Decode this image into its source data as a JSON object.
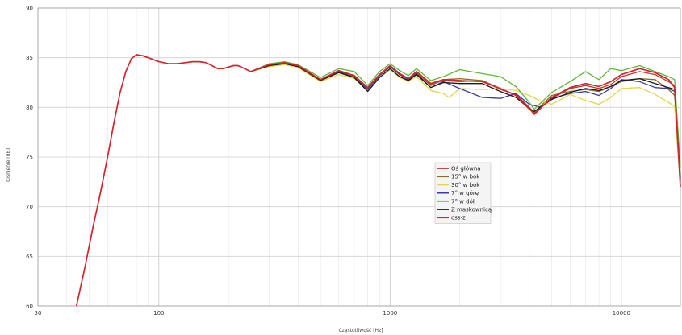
{
  "chart_data": {
    "type": "line",
    "xlabel": "Częstotliwość [Hz]",
    "ylabel": "Ciśnienie [dB]",
    "x_scale": "log",
    "xlim": [
      30,
      18000
    ],
    "ylim": [
      60,
      90
    ],
    "x_ticks": [
      {
        "value": 30,
        "label": "30"
      },
      {
        "value": 100,
        "label": "100"
      },
      {
        "value": 1000,
        "label": "1000"
      },
      {
        "value": 10000,
        "label": "10000"
      }
    ],
    "y_ticks": [
      {
        "value": 60,
        "label": "60"
      },
      {
        "value": 65,
        "label": "65"
      },
      {
        "value": 70,
        "label": "70"
      },
      {
        "value": 75,
        "label": "75"
      },
      {
        "value": 80,
        "label": "80"
      },
      {
        "value": 85,
        "label": "85"
      },
      {
        "value": 90,
        "label": "90"
      }
    ],
    "grid": true,
    "legend_position": "center-right",
    "series": [
      {
        "name": "Oś główna",
        "color": "#c0392b",
        "points": [
          [
            250,
            83.6
          ],
          [
            300,
            84.3
          ],
          [
            350,
            84.5
          ],
          [
            400,
            84.2
          ],
          [
            500,
            82.8
          ],
          [
            600,
            83.7
          ],
          [
            700,
            83.2
          ],
          [
            800,
            82.0
          ],
          [
            900,
            83.3
          ],
          [
            1000,
            84.2
          ],
          [
            1100,
            83.4
          ],
          [
            1200,
            82.9
          ],
          [
            1300,
            83.6
          ],
          [
            1500,
            82.3
          ],
          [
            1700,
            82.7
          ],
          [
            2000,
            82.6
          ],
          [
            2500,
            82.7
          ],
          [
            3000,
            81.8
          ],
          [
            3500,
            81.3
          ],
          [
            4000,
            80.0
          ],
          [
            4200,
            79.4
          ],
          [
            5000,
            80.9
          ],
          [
            6000,
            81.9
          ],
          [
            7000,
            82.2
          ],
          [
            8000,
            81.9
          ],
          [
            9000,
            82.3
          ],
          [
            10000,
            83.1
          ],
          [
            12000,
            83.6
          ],
          [
            14000,
            83.3
          ],
          [
            16000,
            82.6
          ],
          [
            17000,
            82.2
          ],
          [
            18000,
            73.0
          ]
        ]
      },
      {
        "name": "15° w bok",
        "color": "#8e6b1f",
        "points": [
          [
            250,
            83.6
          ],
          [
            300,
            84.3
          ],
          [
            350,
            84.5
          ],
          [
            400,
            84.2
          ],
          [
            500,
            82.8
          ],
          [
            600,
            83.6
          ],
          [
            700,
            83.1
          ],
          [
            800,
            81.9
          ],
          [
            900,
            83.2
          ],
          [
            1000,
            84.1
          ],
          [
            1100,
            83.3
          ],
          [
            1200,
            82.9
          ],
          [
            1300,
            83.5
          ],
          [
            1500,
            82.2
          ],
          [
            1700,
            82.8
          ],
          [
            2000,
            82.9
          ],
          [
            2500,
            82.7
          ],
          [
            3000,
            81.9
          ],
          [
            3500,
            81.2
          ],
          [
            4000,
            79.8
          ],
          [
            4200,
            79.5
          ],
          [
            5000,
            81.2
          ],
          [
            6000,
            81.6
          ],
          [
            7000,
            81.8
          ],
          [
            8000,
            81.6
          ],
          [
            9000,
            82.1
          ],
          [
            10000,
            82.6
          ],
          [
            12000,
            82.9
          ],
          [
            14000,
            82.8
          ],
          [
            16000,
            81.8
          ],
          [
            17000,
            81.2
          ],
          [
            18000,
            72.5
          ]
        ]
      },
      {
        "name": "30° w bok",
        "color": "#e4d64a",
        "points": [
          [
            250,
            83.6
          ],
          [
            300,
            84.1
          ],
          [
            350,
            84.3
          ],
          [
            400,
            84.0
          ],
          [
            500,
            82.6
          ],
          [
            600,
            83.3
          ],
          [
            700,
            82.9
          ],
          [
            800,
            81.7
          ],
          [
            900,
            83.0
          ],
          [
            1000,
            83.8
          ],
          [
            1100,
            83.0
          ],
          [
            1200,
            82.6
          ],
          [
            1300,
            83.1
          ],
          [
            1500,
            81.7
          ],
          [
            1700,
            81.4
          ],
          [
            1800,
            81.0
          ],
          [
            2000,
            81.9
          ],
          [
            2500,
            81.8
          ],
          [
            3000,
            81.9
          ],
          [
            3500,
            81.7
          ],
          [
            4000,
            81.2
          ],
          [
            4500,
            80.6
          ],
          [
            5000,
            80.3
          ],
          [
            6000,
            81.3
          ],
          [
            7000,
            80.7
          ],
          [
            8000,
            80.3
          ],
          [
            9000,
            81.0
          ],
          [
            10000,
            81.9
          ],
          [
            12000,
            82.0
          ],
          [
            14000,
            81.3
          ],
          [
            16000,
            80.5
          ],
          [
            17000,
            80.1
          ],
          [
            18000,
            72.0
          ]
        ]
      },
      {
        "name": "7° w górę",
        "color": "#3a3aa8",
        "points": [
          [
            250,
            83.6
          ],
          [
            300,
            84.3
          ],
          [
            350,
            84.5
          ],
          [
            400,
            84.2
          ],
          [
            500,
            82.8
          ],
          [
            600,
            83.6
          ],
          [
            700,
            83.0
          ],
          [
            800,
            81.8
          ],
          [
            900,
            83.2
          ],
          [
            1000,
            84.1
          ],
          [
            1100,
            83.3
          ],
          [
            1200,
            82.8
          ],
          [
            1300,
            83.4
          ],
          [
            1500,
            82.0
          ],
          [
            1700,
            82.6
          ],
          [
            2000,
            81.9
          ],
          [
            2500,
            81.0
          ],
          [
            3000,
            80.9
          ],
          [
            3500,
            81.4
          ],
          [
            4000,
            80.3
          ],
          [
            4500,
            80.0
          ],
          [
            5000,
            80.9
          ],
          [
            6000,
            81.4
          ],
          [
            7000,
            81.6
          ],
          [
            8000,
            81.2
          ],
          [
            9000,
            81.9
          ],
          [
            10000,
            82.8
          ],
          [
            12000,
            82.6
          ],
          [
            14000,
            82.0
          ],
          [
            16000,
            81.9
          ],
          [
            17000,
            81.6
          ],
          [
            18000,
            72.8
          ]
        ]
      },
      {
        "name": "7° w dół",
        "color": "#5cb83a",
        "points": [
          [
            250,
            83.6
          ],
          [
            300,
            84.4
          ],
          [
            350,
            84.6
          ],
          [
            400,
            84.3
          ],
          [
            500,
            83.0
          ],
          [
            600,
            83.9
          ],
          [
            700,
            83.6
          ],
          [
            800,
            82.2
          ],
          [
            900,
            83.6
          ],
          [
            1000,
            84.4
          ],
          [
            1100,
            83.7
          ],
          [
            1200,
            83.2
          ],
          [
            1300,
            83.9
          ],
          [
            1500,
            82.7
          ],
          [
            1700,
            83.1
          ],
          [
            2000,
            83.8
          ],
          [
            2500,
            83.4
          ],
          [
            3000,
            83.1
          ],
          [
            3500,
            82.1
          ],
          [
            4000,
            80.5
          ],
          [
            4200,
            79.8
          ],
          [
            5000,
            81.5
          ],
          [
            6000,
            82.6
          ],
          [
            7000,
            83.6
          ],
          [
            8000,
            82.8
          ],
          [
            9000,
            83.9
          ],
          [
            10000,
            83.7
          ],
          [
            12000,
            84.2
          ],
          [
            14000,
            83.6
          ],
          [
            16000,
            83.1
          ],
          [
            17000,
            82.8
          ],
          [
            18000,
            74.0
          ]
        ]
      },
      {
        "name": "Z maskownicą",
        "color": "#1a1a1a",
        "points": [
          [
            250,
            83.6
          ],
          [
            300,
            84.2
          ],
          [
            350,
            84.4
          ],
          [
            400,
            84.1
          ],
          [
            500,
            82.7
          ],
          [
            600,
            83.5
          ],
          [
            700,
            83.0
          ],
          [
            800,
            81.6
          ],
          [
            900,
            83.0
          ],
          [
            1000,
            83.9
          ],
          [
            1100,
            83.1
          ],
          [
            1200,
            82.7
          ],
          [
            1300,
            83.3
          ],
          [
            1500,
            82.0
          ],
          [
            1700,
            82.5
          ],
          [
            2000,
            82.4
          ],
          [
            2500,
            82.4
          ],
          [
            3000,
            81.6
          ],
          [
            3500,
            81.0
          ],
          [
            4000,
            79.9
          ],
          [
            4200,
            79.6
          ],
          [
            5000,
            80.8
          ],
          [
            6000,
            81.5
          ],
          [
            7000,
            81.9
          ],
          [
            8000,
            81.7
          ],
          [
            9000,
            82.1
          ],
          [
            10000,
            82.7
          ],
          [
            12000,
            82.9
          ],
          [
            14000,
            82.4
          ],
          [
            16000,
            82.0
          ],
          [
            17000,
            81.8
          ],
          [
            18000,
            72.6
          ]
        ]
      },
      {
        "name": "oss-z",
        "color": "#d4242e",
        "points": [
          [
            44,
            60.0
          ],
          [
            48,
            64.0
          ],
          [
            52,
            68.0
          ],
          [
            56,
            71.5
          ],
          [
            60,
            75.0
          ],
          [
            64,
            78.5
          ],
          [
            68,
            81.5
          ],
          [
            72,
            83.6
          ],
          [
            76,
            84.9
          ],
          [
            80,
            85.3
          ],
          [
            85,
            85.2
          ],
          [
            90,
            85.0
          ],
          [
            100,
            84.6
          ],
          [
            110,
            84.4
          ],
          [
            120,
            84.4
          ],
          [
            130,
            84.5
          ],
          [
            140,
            84.6
          ],
          [
            150,
            84.6
          ],
          [
            160,
            84.5
          ],
          [
            180,
            83.9
          ],
          [
            190,
            83.9
          ],
          [
            210,
            84.2
          ],
          [
            220,
            84.2
          ],
          [
            230,
            84.0
          ],
          [
            250,
            83.6
          ],
          [
            300,
            84.3
          ],
          [
            350,
            84.5
          ],
          [
            400,
            84.2
          ],
          [
            500,
            82.8
          ],
          [
            600,
            83.7
          ],
          [
            700,
            83.2
          ],
          [
            800,
            82.0
          ],
          [
            900,
            83.3
          ],
          [
            1000,
            84.2
          ],
          [
            1100,
            83.4
          ],
          [
            1200,
            82.9
          ],
          [
            1300,
            83.6
          ],
          [
            1500,
            82.4
          ],
          [
            1700,
            82.8
          ],
          [
            2000,
            82.7
          ],
          [
            2500,
            82.6
          ],
          [
            3000,
            81.9
          ],
          [
            3500,
            81.2
          ],
          [
            4000,
            79.9
          ],
          [
            4200,
            79.3
          ],
          [
            5000,
            81.0
          ],
          [
            6000,
            82.0
          ],
          [
            7000,
            82.4
          ],
          [
            8000,
            82.1
          ],
          [
            9000,
            82.6
          ],
          [
            10000,
            83.3
          ],
          [
            12000,
            83.9
          ],
          [
            14000,
            83.5
          ],
          [
            16000,
            82.8
          ],
          [
            17000,
            82.0
          ],
          [
            18000,
            72.0
          ]
        ]
      }
    ]
  }
}
